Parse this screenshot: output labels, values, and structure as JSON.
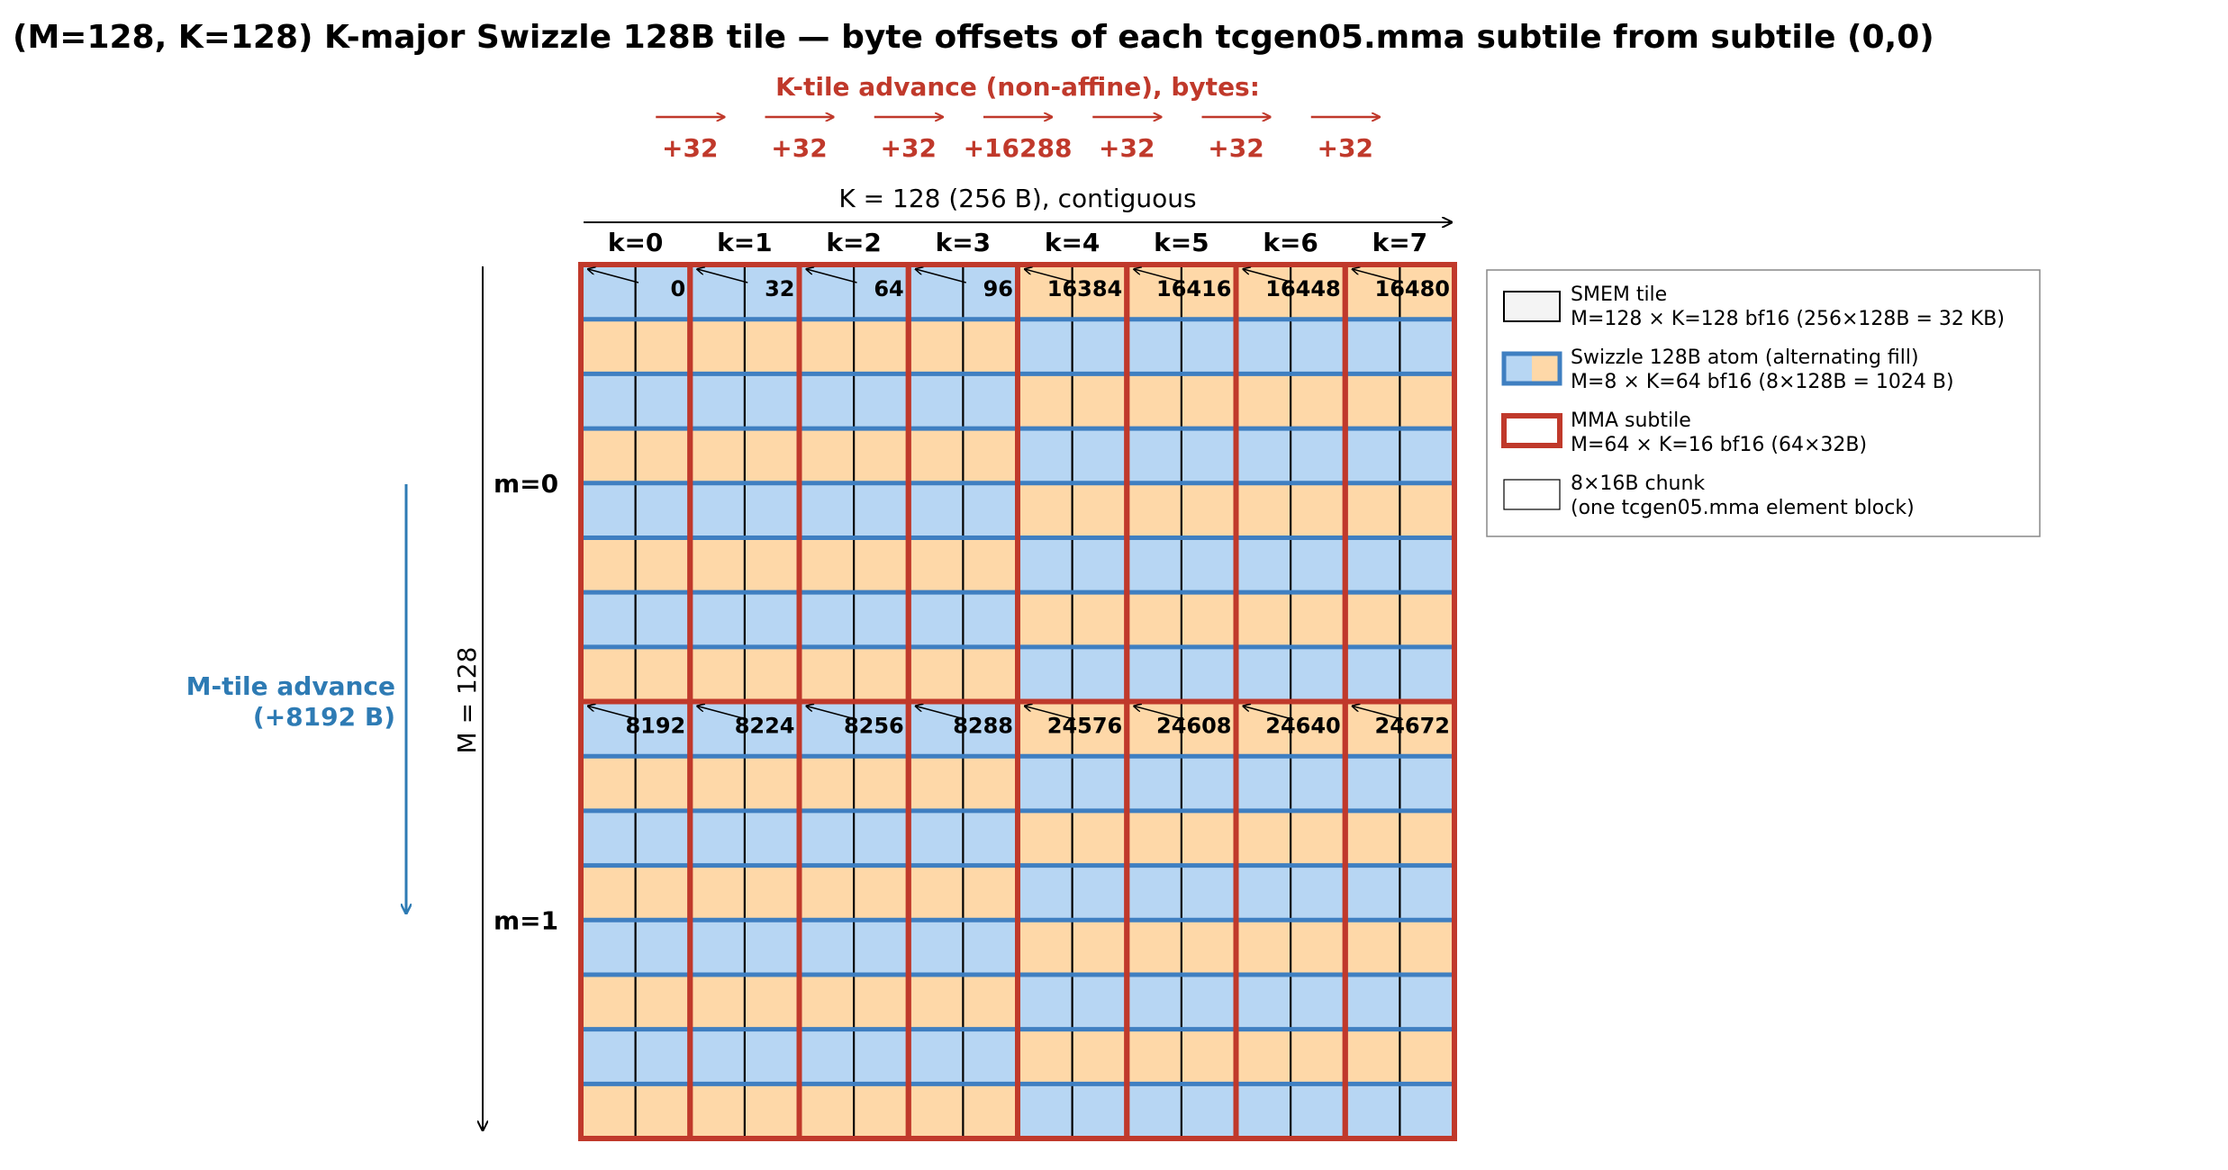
{
  "title": "(M=128, K=128) K-major Swizzle 128B tile — byte offsets of each tcgen05.mma subtile from subtile (0,0)",
  "k_advance": {
    "label": "K-tile advance (non-affine), bytes:",
    "steps": [
      "+32",
      "+32",
      "+32",
      "+16288",
      "+32",
      "+32",
      "+32"
    ]
  },
  "k_axis": {
    "label": "K = 128 (256 B), contiguous",
    "columns": [
      "k=0",
      "k=1",
      "k=2",
      "k=3",
      "k=4",
      "k=5",
      "k=6",
      "k=7"
    ]
  },
  "m_axis": {
    "label": "M = 128",
    "rows": [
      "m=0",
      "m=1"
    ]
  },
  "m_advance": {
    "line1": "M-tile advance",
    "line2": "(+8192 B)"
  },
  "offsets": [
    [
      "0",
      "32",
      "64",
      "96",
      "16384",
      "16416",
      "16448",
      "16480"
    ],
    [
      "8192",
      "8224",
      "8256",
      "8288",
      "24576",
      "24608",
      "24640",
      "24672"
    ]
  ],
  "legend": [
    {
      "line1": "SMEM tile",
      "line2": "M=128 × K=128 bf16 (256×128B = 32 KB)"
    },
    {
      "line1": "Swizzle 128B atom (alternating fill)",
      "line2": "M=8 × K=64 bf16 (8×128B = 1024 B)"
    },
    {
      "line1": "MMA subtile",
      "line2": "M=64 × K=16 bf16 (64×32B)"
    },
    {
      "line1": "8×16B chunk",
      "line2": "(one tcgen05.mma element block)"
    }
  ],
  "colors": {
    "text": "#000000",
    "k_advance": "#c0392b",
    "m_advance": "#2e7bb4",
    "atom_blue_fill": "#b7d6f3",
    "atom_orange_fill": "#fed8a8",
    "atom_border": "#3f7fc1",
    "mma_border": "#c0392b",
    "smem_fill": "#f4f4f4"
  }
}
